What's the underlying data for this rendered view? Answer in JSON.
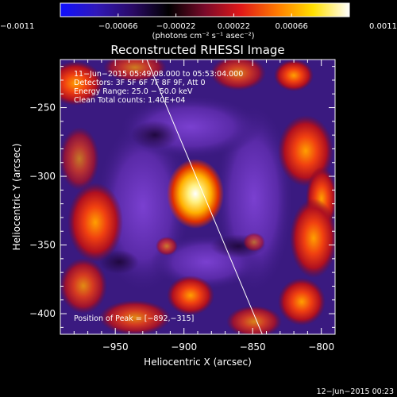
{
  "colorbar": {
    "tick_labels": [
      "−0.0011",
      "−0.00066",
      "−0.00022",
      "0.00022",
      "0.00066",
      "0.0011"
    ],
    "ticks": [
      -0.0011,
      -0.00066,
      -0.00022,
      0.00022,
      0.00066,
      0.0011
    ],
    "units_label": "(photons cm⁻² s⁻¹ asec⁻²)",
    "stops": [
      "#1010ff",
      "#3018b8",
      "#2a0a66",
      "#000000",
      "#7a0a2a",
      "#e01818",
      "#ff7a00",
      "#ffe000",
      "#ffffff"
    ]
  },
  "plot": {
    "title": "Reconstructed RHESSI Image",
    "xlabel": "Heliocentric X (arcsec)",
    "ylabel": "Heliocentric Y (arcsec)",
    "xlim": [
      -990,
      -790
    ],
    "ylim": [
      -415,
      -215
    ],
    "x_tick_values": [
      -950,
      -900,
      -850,
      -800
    ],
    "x_tick_labels": [
      "−950",
      "−900",
      "−850",
      "−800"
    ],
    "y_tick_values": [
      -250,
      -300,
      -350,
      -400
    ],
    "y_tick_labels": [
      "−250",
      "−300",
      "−350",
      "−400"
    ],
    "info_lines": [
      "11−Jun−2015 05:49:08.000 to 05:53:04.000",
      "Detectors: 3F 5F 6F 7F 8F 9F, Att 0",
      "Energy Range: 25.0 − 50.0 keV",
      "Clean     Total counts: 1.40E+04"
    ],
    "peak_label": "Position of Peak = [−892,−315]",
    "peak_position": [
      -892,
      -315
    ],
    "limb_line": [
      [
        -927,
        -215
      ],
      [
        -843,
        -415
      ]
    ],
    "footer_date": "12−Jun−2015 00:23"
  }
}
